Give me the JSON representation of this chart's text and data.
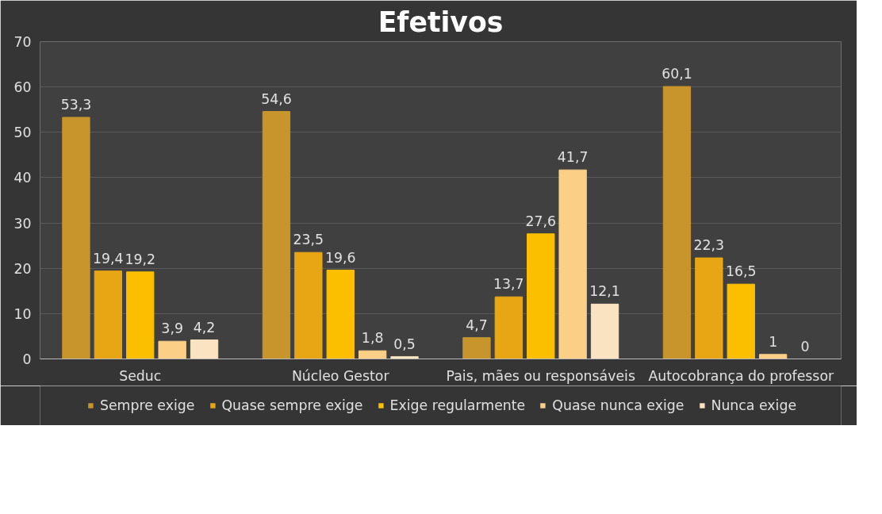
{
  "chart_data": {
    "type": "bar",
    "title": "Efetivos",
    "categories": [
      "Seduc",
      "Núcleo Gestor",
      "Pais, mães ou responsáveis",
      "Autocobrança do professor"
    ],
    "series": [
      {
        "name": "Sempre exige",
        "color": "#c8952c",
        "values": [
          53.3,
          54.6,
          4.7,
          60.1
        ],
        "value_labels": [
          "53,3",
          "54,6",
          "4,7",
          "60,1"
        ]
      },
      {
        "name": "Quase sempre exige",
        "color": "#e8a615",
        "values": [
          19.4,
          23.5,
          13.7,
          22.3
        ],
        "value_labels": [
          "19,4",
          "23,5",
          "13,7",
          "22,3"
        ]
      },
      {
        "name": "Exige regularmente",
        "color": "#fcbf00",
        "values": [
          19.2,
          19.6,
          27.6,
          16.5
        ],
        "value_labels": [
          "19,2",
          "19,6",
          "27,6",
          "16,5"
        ]
      },
      {
        "name": "Quase nunca exige",
        "color": "#fbcf86",
        "values": [
          3.9,
          1.8,
          41.7,
          1
        ],
        "value_labels": [
          "3,9",
          "1,8",
          "41,7",
          "1"
        ]
      },
      {
        "name": "Nunca exige",
        "color": "#f9e3c0",
        "values": [
          4.2,
          0.5,
          12.1,
          0
        ],
        "value_labels": [
          "4,2",
          "0,5",
          "12,1",
          "0"
        ]
      }
    ],
    "ylim": [
      0,
      70
    ],
    "yticks": [
      0,
      10,
      20,
      30,
      40,
      50,
      60,
      70
    ],
    "grid": "y",
    "legend": "bottom"
  }
}
